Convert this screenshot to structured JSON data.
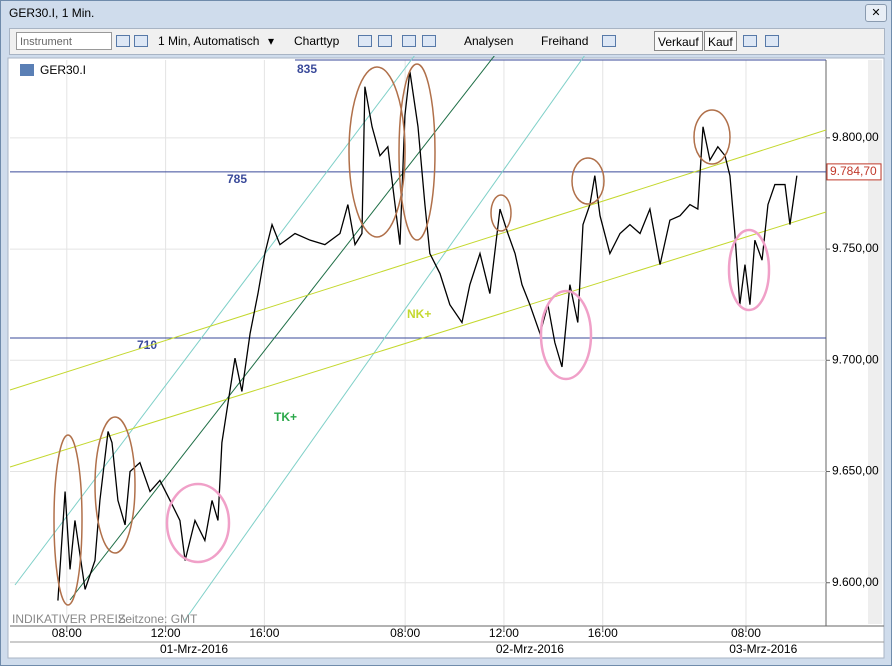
{
  "window_title": "GER30.I, 1 Min.",
  "toolbar": {
    "instrument": "Instrument",
    "interval": "1 Min, Automatisch",
    "chart_type": "Charttyp",
    "analyses": "Analysen",
    "freehand": "Freihand",
    "sell": "Verkauf",
    "buy": "Kauf"
  },
  "chart_data": {
    "type": "line",
    "title": "GER30.I",
    "footer": "INDIKATIVER PREIS",
    "timezone": "Zeitzone: GMT",
    "grid": true,
    "x": [
      1.94,
      2.23,
      2.43,
      2.63,
      3.04,
      3.44,
      3.64,
      3.97,
      4.13,
      4.37,
      4.66,
      4.86,
      5.26,
      5.67,
      6.07,
      6.48,
      6.88,
      7.09,
      7.49,
      7.89,
      8.18,
      8.42,
      8.58,
      8.83,
      9.11,
      9.39,
      9.72,
      10.04,
      10.32,
      10.61,
      10.93,
      11.54,
      12.15,
      12.75,
      13.36,
      13.68,
      13.97,
      14.25,
      14.37,
      14.66,
      14.98,
      15.3,
      15.59,
      15.79,
      15.99,
      16.19,
      16.52,
      16.8,
      17.0,
      17.41,
      17.81,
      18.3,
      18.62,
      19.03,
      19.43,
      19.84,
      20.16,
      20.45,
      20.73,
      21.05,
      21.46,
      21.78,
      22.06,
      22.35,
      22.67,
      22.99,
      23.2,
      23.48,
      23.68,
      23.89,
      24.29,
      24.7,
      25.1,
      25.51,
      25.91,
      26.32,
      26.72,
      27.13,
      27.53,
      27.85,
      28.06,
      28.34,
      28.66,
      28.95,
      29.15,
      29.35,
      29.55,
      29.76,
      29.96,
      30.16,
      30.45,
      30.69,
      30.97,
      31.38,
      31.58,
      31.86
    ],
    "series": [
      {
        "name": "GER30.I",
        "color": "#000000",
        "values": [
          9592,
          9641,
          9606,
          9628,
          9597,
          9610,
          9637,
          9668,
          9663,
          9637,
          9626,
          9650,
          9654,
          9641,
          9646,
          9637,
          9628,
          9610,
          9628,
          9619,
          9637,
          9628,
          9663,
          9681,
          9701,
          9686,
          9712,
          9730,
          9748,
          9761,
          9752,
          9757,
          9754,
          9752,
          9757,
          9770,
          9752,
          9757,
          9823,
          9805,
          9792,
          9796,
          9770,
          9752,
          9810,
          9830,
          9805,
          9770,
          9748,
          9739,
          9725,
          9717,
          9734,
          9748,
          9730,
          9768,
          9757,
          9748,
          9734,
          9725,
          9712,
          9725,
          9708,
          9697,
          9734,
          9717,
          9761,
          9770,
          9783,
          9765,
          9748,
          9757,
          9761,
          9757,
          9768,
          9743,
          9763,
          9765,
          9770,
          9768,
          9805,
          9790,
          9796,
          9792,
          9783,
          9757,
          9725,
          9743,
          9725,
          9754,
          9745,
          9770,
          9779,
          9779,
          9761,
          9783
        ]
      }
    ],
    "xlim": [
      0,
      33.04
    ],
    "xticks": [
      {
        "value": 2.3,
        "label": "08:00"
      },
      {
        "value": 6.3,
        "label": "12:00"
      },
      {
        "value": 10.3,
        "label": "16:00"
      },
      {
        "value": 16.0,
        "label": "08:00"
      },
      {
        "value": 20.0,
        "label": "12:00"
      },
      {
        "value": 24.0,
        "label": "16:00"
      },
      {
        "value": 29.8,
        "label": "08:00"
      }
    ],
    "dates": [
      {
        "value": 7.45,
        "label": "01-Mrz-2016"
      },
      {
        "value": 21.05,
        "label": "02-Mrz-2016"
      },
      {
        "value": 30.5,
        "label": "03-Mrz-2016"
      }
    ],
    "ylim": [
      9581,
      9835
    ],
    "yticks": [
      {
        "value": 9600,
        "label": "9.600,00"
      },
      {
        "value": 9650,
        "label": "9.650,00"
      },
      {
        "value": 9700,
        "label": "9.700,00"
      },
      {
        "value": 9750,
        "label": "9.750,00"
      },
      {
        "value": 9800,
        "label": "9.800,00"
      }
    ],
    "last_price": {
      "value": 9784.7,
      "label": "9.784,70"
    },
    "levels": [
      {
        "value": 9835,
        "label": "835"
      },
      {
        "value": 9710,
        "label": "710"
      }
    ],
    "annotations": [
      "785",
      "NK+",
      "TK+"
    ]
  }
}
